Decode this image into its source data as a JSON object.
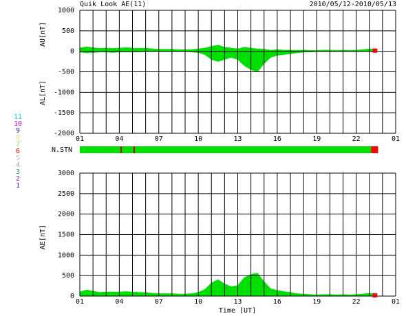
{
  "chart_data": [
    {
      "type": "area",
      "title": "Quik Look AE(11)",
      "subtitle": "2010/05/12-2010/05/13",
      "ylabels": [
        "AU[nT]",
        "AL[nT]"
      ],
      "x": [
        0,
        0.5,
        1,
        1.5,
        2,
        2.5,
        3,
        3.5,
        4,
        4.5,
        5,
        5.5,
        6,
        6.5,
        7,
        7.5,
        8,
        8.5,
        9,
        9.5,
        10,
        10.5,
        11,
        11.5,
        12,
        12.5,
        13,
        13.5,
        14,
        14.5,
        15,
        15.5,
        16,
        16.5,
        17,
        17.5,
        18,
        18.5,
        19,
        19.5,
        20,
        20.5,
        21,
        21.5,
        22,
        22.5
      ],
      "series": [
        {
          "color": "#00e000",
          "values": [
            80,
            110,
            90,
            70,
            80,
            70,
            80,
            90,
            80,
            70,
            80,
            60,
            50,
            50,
            50,
            40,
            40,
            40,
            60,
            80,
            120,
            150,
            100,
            80,
            60,
            100,
            80,
            60,
            50,
            30,
            40,
            30,
            30,
            20,
            30,
            20,
            20,
            30,
            30,
            20,
            30,
            20,
            30,
            40,
            60,
            40
          ]
        },
        {
          "color": "#00e000",
          "values": [
            -20,
            -40,
            -30,
            -20,
            -20,
            -30,
            -20,
            -20,
            -20,
            -20,
            -10,
            -10,
            -10,
            -10,
            -10,
            -10,
            -10,
            -20,
            -30,
            -80,
            -200,
            -250,
            -200,
            -150,
            -200,
            -350,
            -450,
            -500,
            -300,
            -150,
            -100,
            -80,
            -60,
            -40,
            -20,
            -20,
            -10,
            -10,
            -10,
            -10,
            -10,
            -10,
            -10,
            -10,
            -10,
            -10
          ]
        }
      ],
      "xlim": [
        0,
        24
      ],
      "xticks": [
        {
          "value": 0,
          "label": "01"
        },
        {
          "value": 3,
          "label": "04"
        },
        {
          "value": 6,
          "label": "07"
        },
        {
          "value": 9,
          "label": "10"
        },
        {
          "value": 12,
          "label": "13"
        },
        {
          "value": 15,
          "label": "16"
        },
        {
          "value": 18,
          "label": "19"
        },
        {
          "value": 21,
          "label": "22"
        },
        {
          "value": 24,
          "label": "01"
        }
      ],
      "minor_xticks": [
        1,
        2,
        4,
        5,
        7,
        8,
        10,
        11,
        13,
        14,
        16,
        17,
        19,
        20,
        22,
        23
      ],
      "ylim": [
        -2000,
        1000
      ],
      "yticks": [
        -2000,
        -1500,
        -1000,
        -500,
        0,
        500,
        1000
      ],
      "grid": true
    },
    {
      "type": "area",
      "xlabel": "Time [UT]",
      "ylabel": "AE[nT]",
      "x": [
        0,
        0.5,
        1,
        1.5,
        2,
        2.5,
        3,
        3.5,
        4,
        4.5,
        5,
        5.5,
        6,
        6.5,
        7,
        7.5,
        8,
        8.5,
        9,
        9.5,
        10,
        10.5,
        11,
        11.5,
        12,
        12.5,
        13,
        13.5,
        14,
        14.5,
        15,
        15.5,
        16,
        16.5,
        17,
        17.5,
        18,
        18.5,
        19,
        19.5,
        20,
        20.5,
        21,
        21.5,
        22,
        22.5
      ],
      "series": [
        {
          "color": "#00e000",
          "values": [
            100,
            150,
            120,
            90,
            100,
            100,
            100,
            110,
            100,
            90,
            90,
            70,
            60,
            60,
            60,
            50,
            50,
            60,
            90,
            160,
            320,
            400,
            300,
            230,
            260,
            450,
            530,
            560,
            350,
            180,
            140,
            110,
            90,
            60,
            50,
            40,
            30,
            40,
            40,
            30,
            40,
            30,
            40,
            50,
            70,
            50
          ]
        }
      ],
      "xlim": [
        0,
        24
      ],
      "xticks": [
        {
          "value": 0,
          "label": "01"
        },
        {
          "value": 3,
          "label": "04"
        },
        {
          "value": 6,
          "label": "07"
        },
        {
          "value": 9,
          "label": "10"
        },
        {
          "value": 12,
          "label": "13"
        },
        {
          "value": 15,
          "label": "16"
        },
        {
          "value": 18,
          "label": "19"
        },
        {
          "value": 21,
          "label": "22"
        },
        {
          "value": 24,
          "label": "01"
        }
      ],
      "minor_xticks": [
        1,
        2,
        4,
        5,
        7,
        8,
        10,
        11,
        13,
        14,
        16,
        17,
        19,
        20,
        22,
        23
      ],
      "ylim": [
        0,
        3000
      ],
      "yticks": [
        0,
        500,
        1000,
        1500,
        2000,
        2500,
        3000
      ],
      "grid": true
    }
  ],
  "stations": {
    "label": "N.STN",
    "numbers": [
      {
        "n": 11,
        "color": "#00e0e0"
      },
      {
        "n": 10,
        "color": "#e000e0"
      },
      {
        "n": 9,
        "color": "#2020a0"
      },
      {
        "n": 8,
        "color": "#e8e080"
      },
      {
        "n": 7,
        "color": "#80e080"
      },
      {
        "n": 6,
        "color": "#e00000"
      },
      {
        "n": 5,
        "color": "#c0c0c0"
      },
      {
        "n": 4,
        "color": "#a0a0a0"
      },
      {
        "n": 3,
        "color": "#209090"
      },
      {
        "n": 2,
        "color": "#a020a0"
      },
      {
        "n": 1,
        "color": "#2020e0"
      }
    ]
  }
}
